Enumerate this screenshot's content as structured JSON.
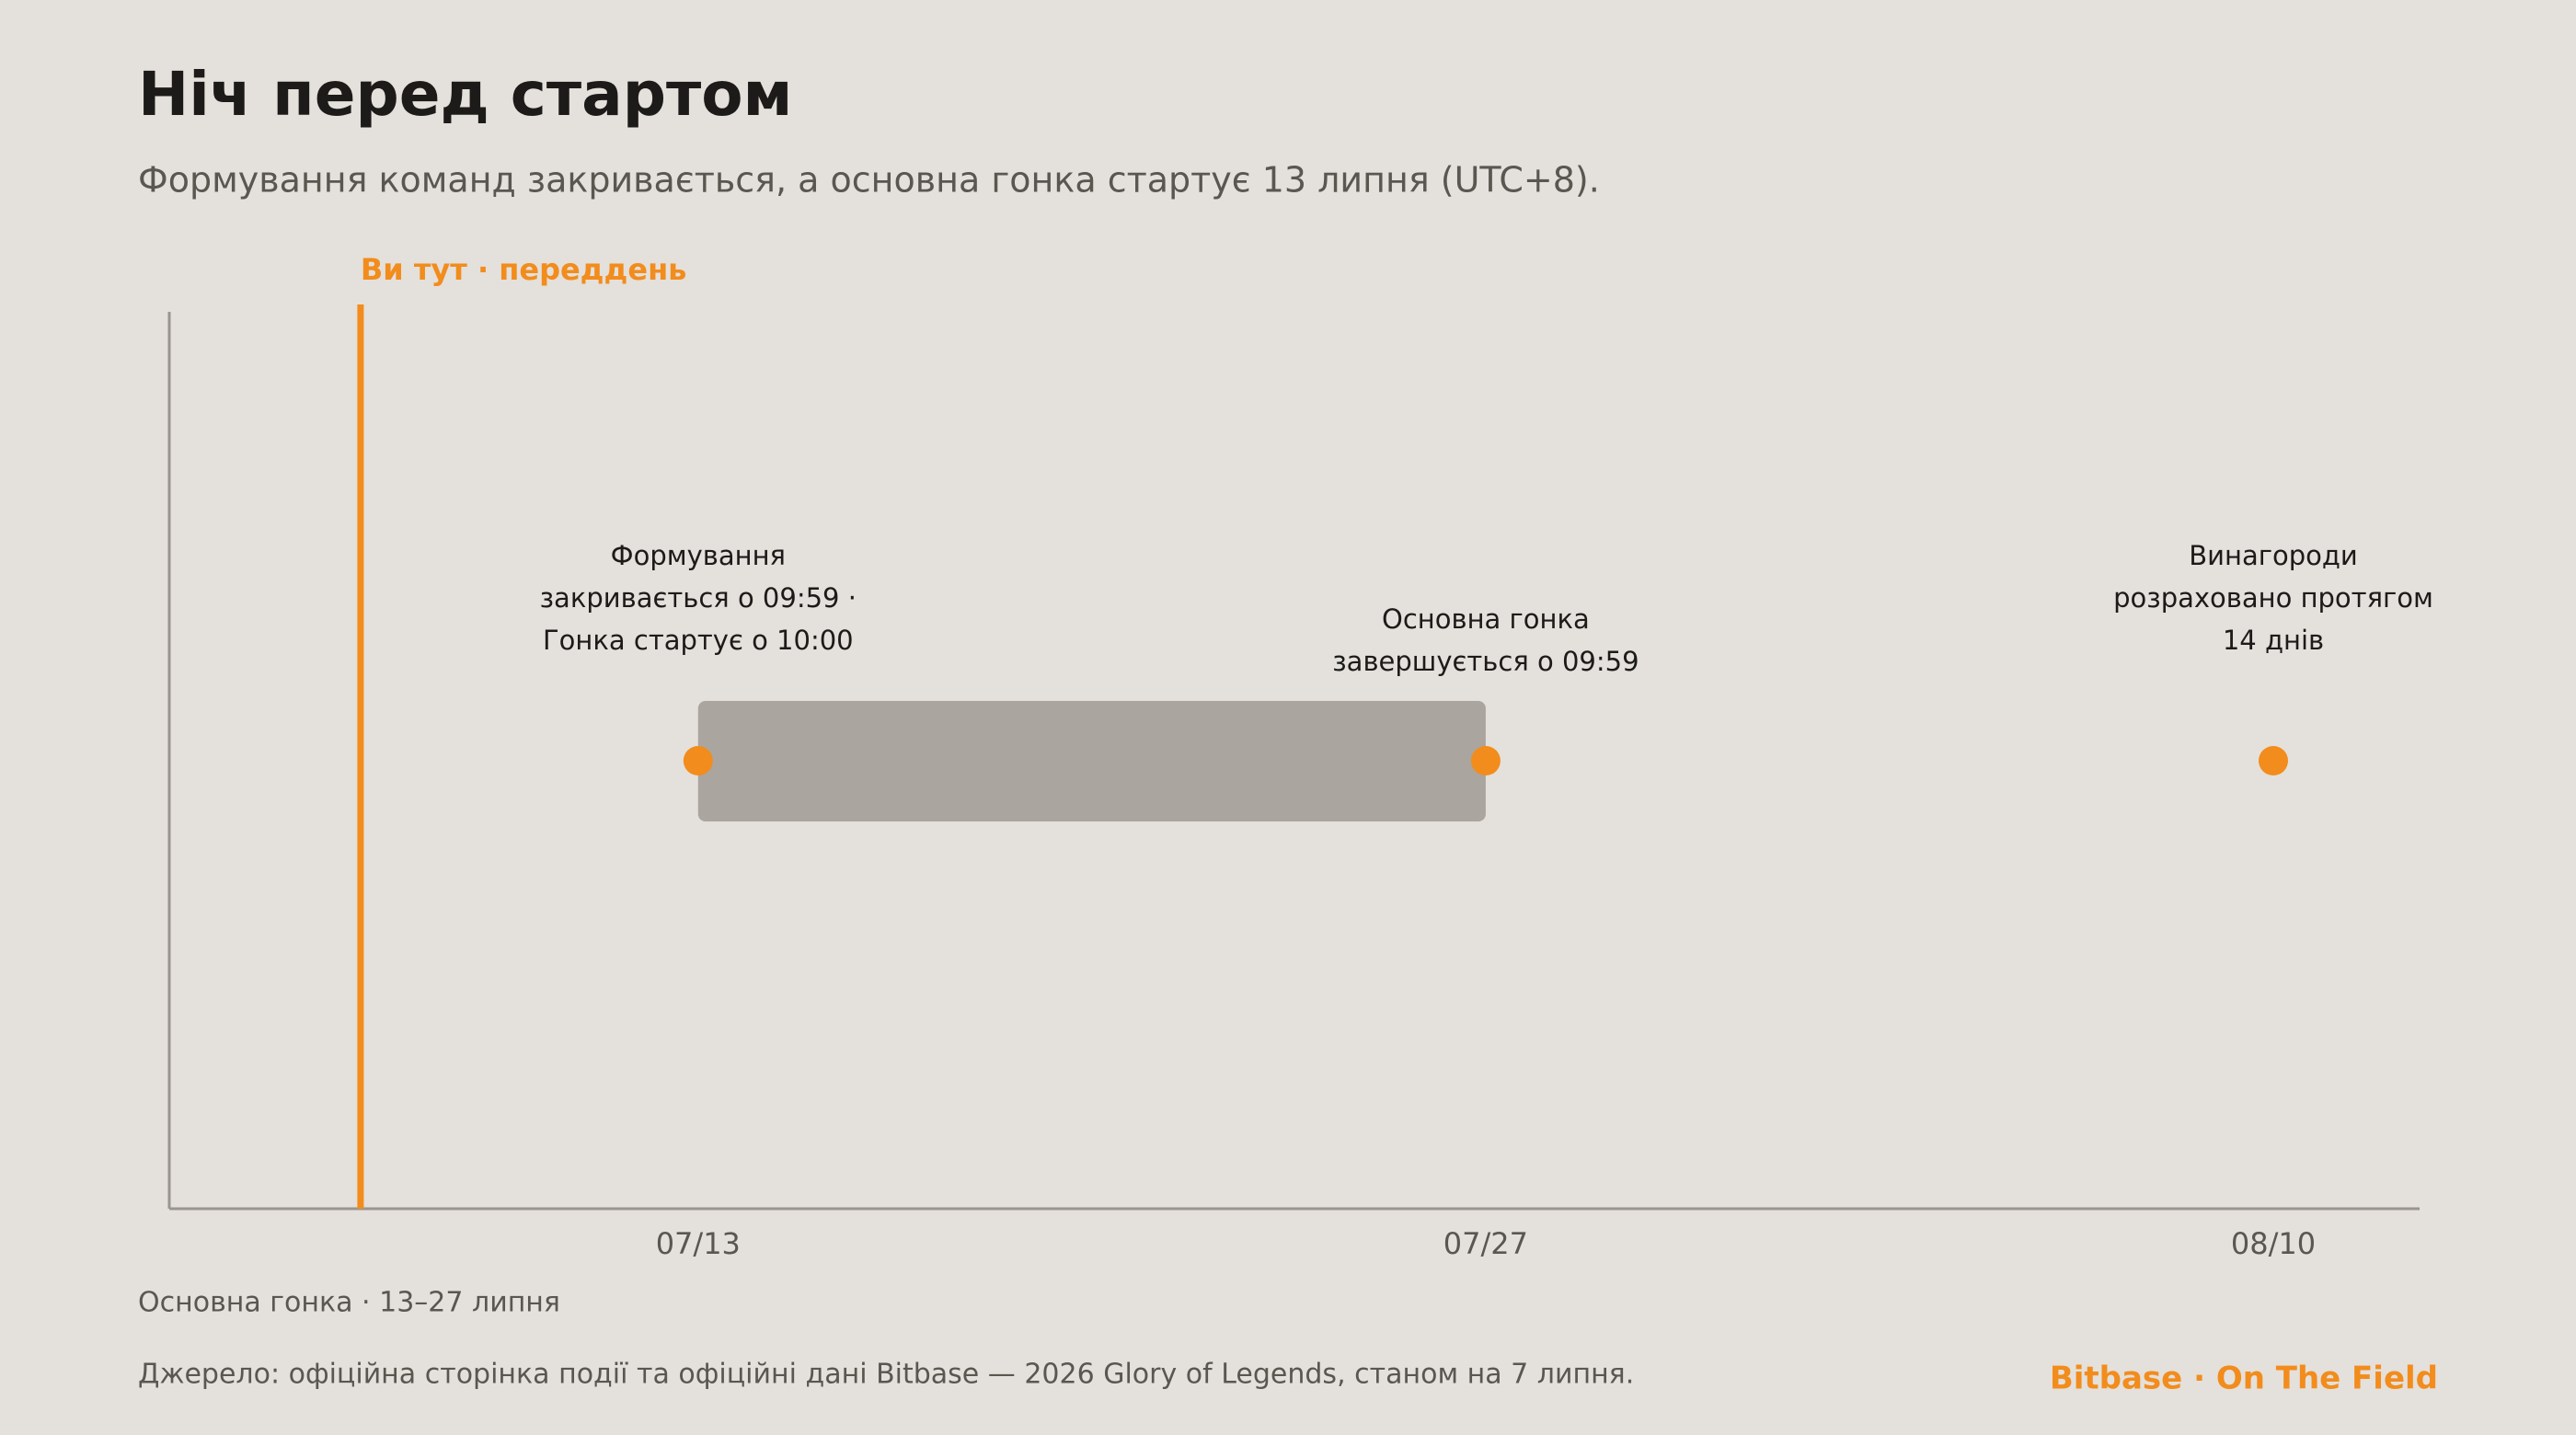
{
  "chart_data": {
    "type": "timeline",
    "title": "Ніч перед стартом",
    "subtitle": "Формування команд закривається, а основна гонка стартує 13 липня (UTC+8).",
    "xlim": [
      184.6,
      224.6
    ],
    "xticks": [
      {
        "value": 194,
        "label": "07/13"
      },
      {
        "value": 208,
        "label": "07/27"
      },
      {
        "value": 222,
        "label": "08/10"
      }
    ],
    "marker": {
      "x": 188,
      "label": "Ви тут · переддень",
      "color": "#f28c1c"
    },
    "range": {
      "start": 194,
      "end": 208,
      "color": "#aaa59f"
    },
    "events": [
      {
        "x": 194,
        "label": [
          "Формування",
          "закривається о 09:59 ·",
          "Гонка стартує о 10:00"
        ]
      },
      {
        "x": 208,
        "label": [
          "Основна гонка",
          "завершується о 09:59"
        ]
      },
      {
        "x": 222,
        "label": [
          "Винагороди",
          "розраховано протягом",
          "14 днів"
        ]
      }
    ],
    "point_color": "#f28c1c",
    "note": "Основна гонка · 13–27 липня",
    "source": "Джерело: офіційна сторінка події та офіційні дані Bitbase — 2026 Glory of Legends, станом на 7 липня.",
    "brand": "Bitbase · On The Field"
  }
}
